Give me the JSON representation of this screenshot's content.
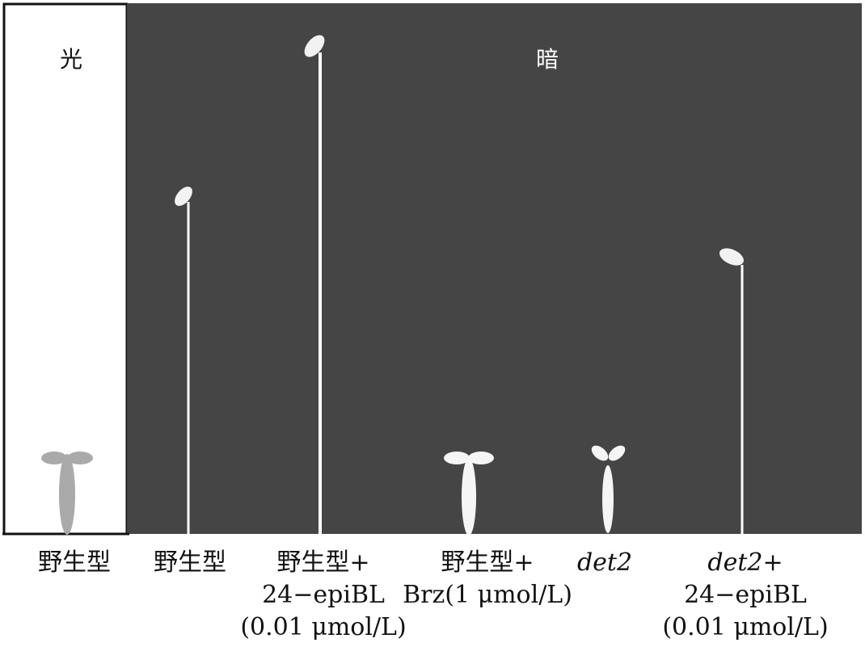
{
  "panels": {
    "light": {
      "label": "光",
      "color": "#ffffff"
    },
    "dark": {
      "label": "暗",
      "color": "#454545"
    }
  },
  "samples": [
    {
      "id": "wt-light",
      "caption": [
        "野生型"
      ],
      "italic": false,
      "seedling": "de-etiolated",
      "seedling_color": "#aaaaaa"
    },
    {
      "id": "wt-dark",
      "caption": [
        "野生型"
      ],
      "italic": false,
      "seedling": "etiolated",
      "seedling_color": "#ffffff"
    },
    {
      "id": "wt-epibl",
      "caption": [
        "野生型+",
        "24−epiBL",
        "(0.01 μmol/L)"
      ],
      "italic": false,
      "seedling": "etiolated",
      "seedling_color": "#ffffff"
    },
    {
      "id": "wt-brz",
      "caption": [
        "野生型+",
        "Brz(1 μmol/L)"
      ],
      "italic": false,
      "seedling": "de-etiolated",
      "seedling_color": "#f5f5f5"
    },
    {
      "id": "det2",
      "caption": [
        "det2"
      ],
      "italic": true,
      "seedling": "de-etiolated",
      "seedling_color": "#f5f5f5"
    },
    {
      "id": "det2-epibl",
      "caption": [
        "det2+",
        "24−epiBL",
        "(0.01 μmol/L)"
      ],
      "italic": false,
      "italic_first": "det2",
      "seedling": "etiolated",
      "seedling_color": "#ffffff"
    }
  ]
}
